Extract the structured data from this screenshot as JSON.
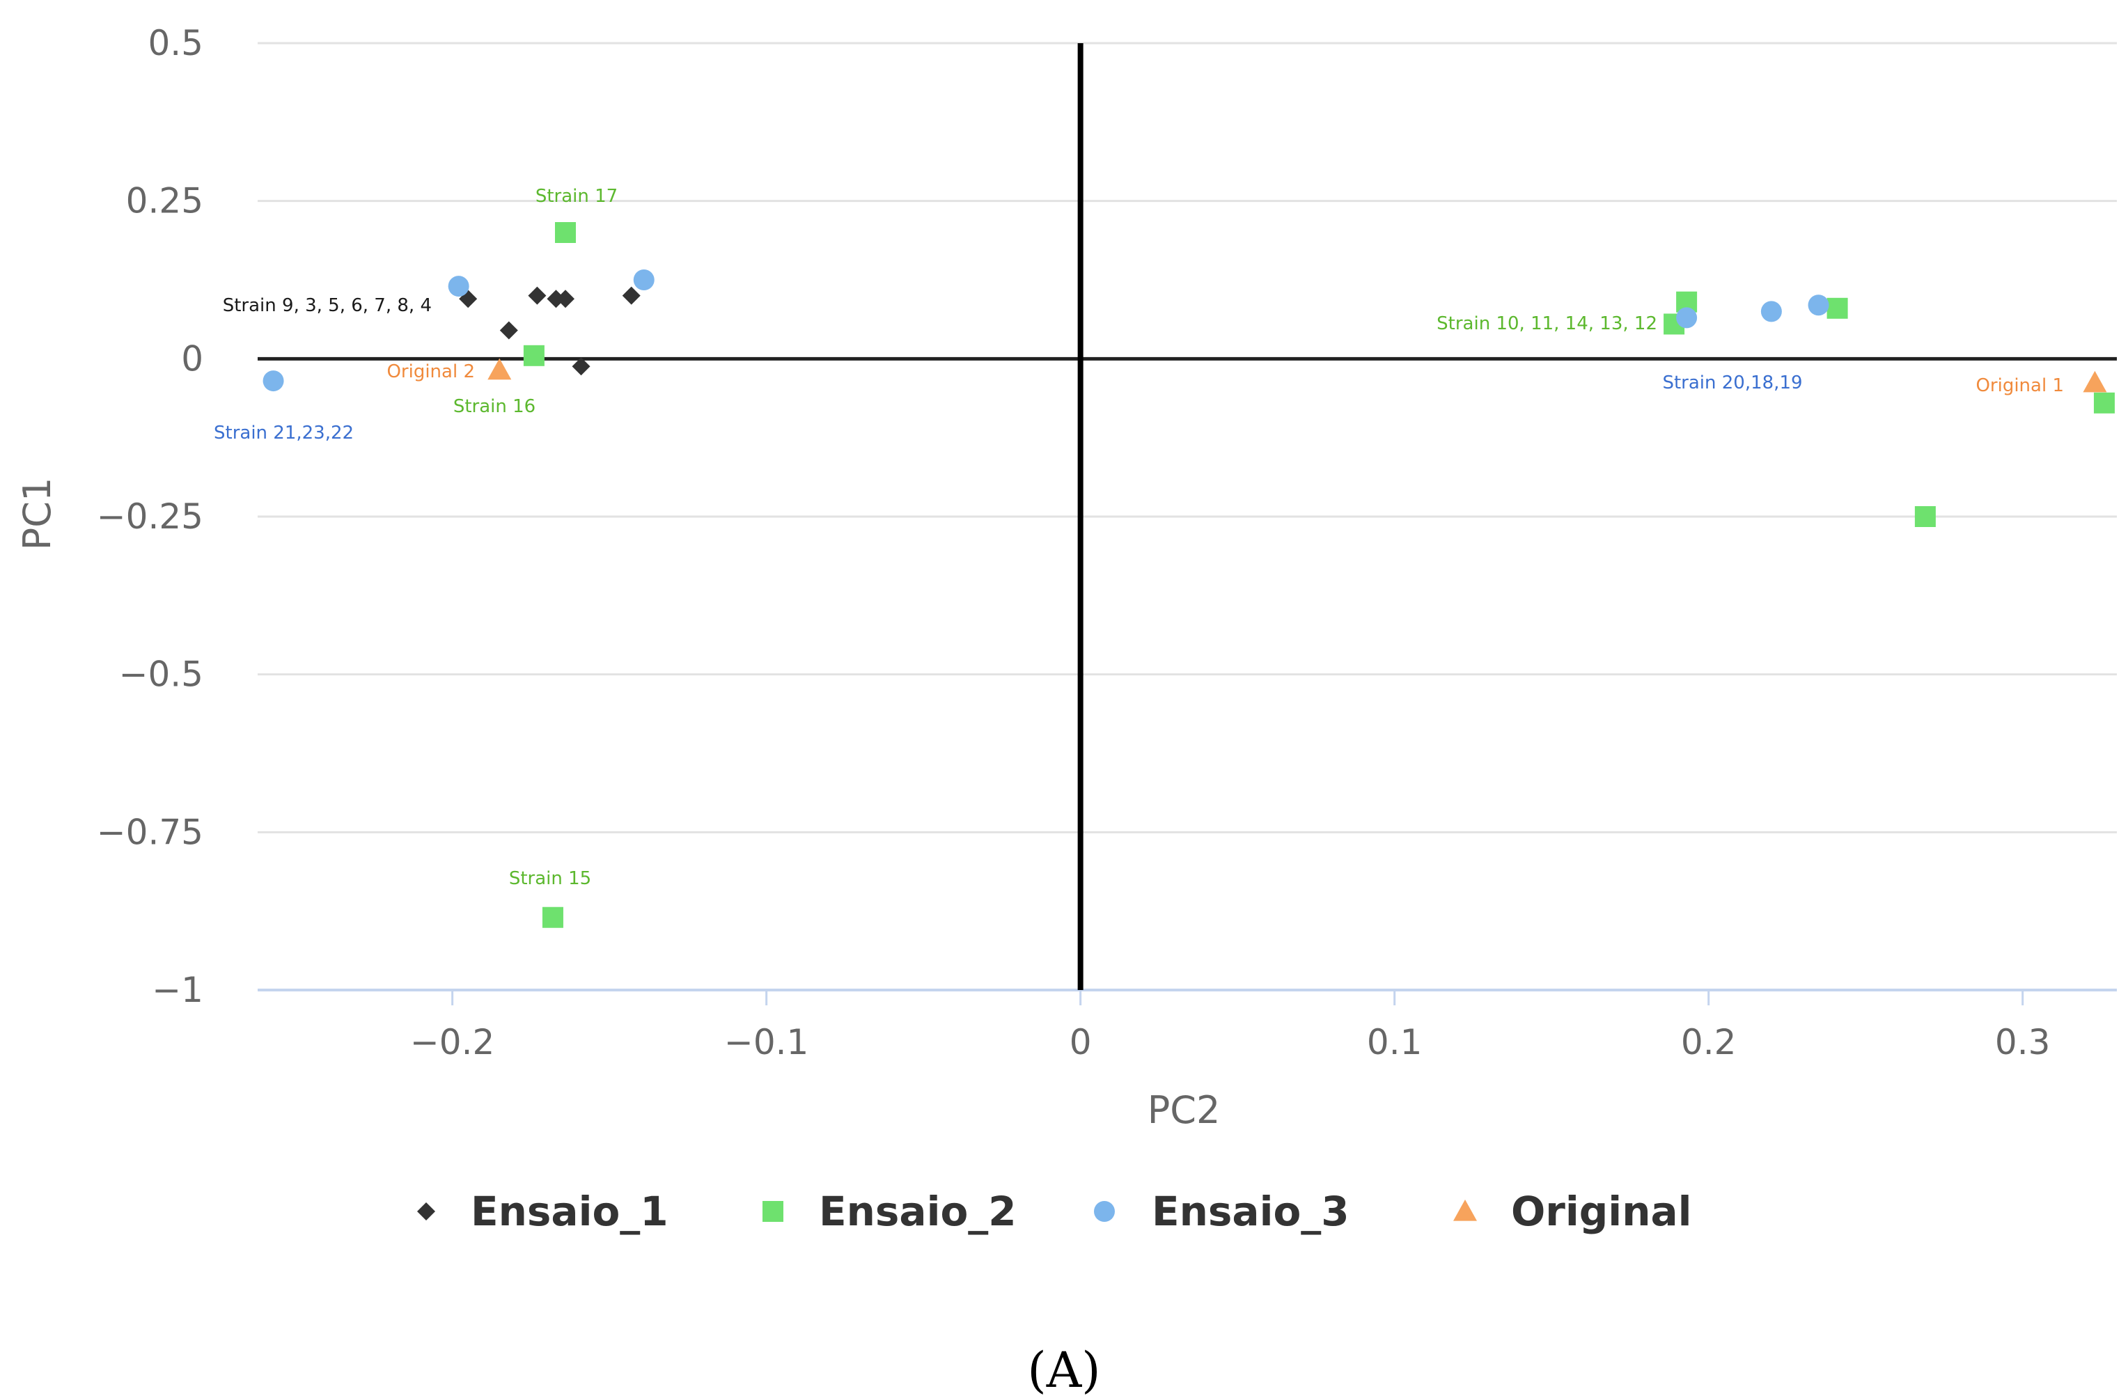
{
  "chart_data": {
    "type": "scatter",
    "title": "",
    "xlabel": "PC2",
    "ylabel": "PC1",
    "xlim": [
      -0.262,
      0.33
    ],
    "ylim": [
      -1,
      0.5
    ],
    "xticks": [
      -0.2,
      -0.1,
      0,
      0.1,
      0.2,
      0.3
    ],
    "xtick_labels": [
      "−0.2",
      "−0.1",
      "0",
      "0.1",
      "0.2",
      "0.3"
    ],
    "yticks": [
      0.5,
      0.25,
      0,
      -0.25,
      -0.5,
      -0.75,
      -1
    ],
    "ytick_labels": [
      "0.5",
      "0.25",
      "0",
      "−0.25",
      "−0.5",
      "−0.75",
      "−1"
    ],
    "grid": true,
    "legend_position": "bottom",
    "series": [
      {
        "name": "Ensaio_1",
        "marker": "diamond",
        "color": "#333333",
        "points": [
          [
            -0.195,
            0.095
          ],
          [
            -0.173,
            0.1
          ],
          [
            -0.167,
            0.095
          ],
          [
            -0.164,
            0.095
          ],
          [
            -0.143,
            0.1
          ],
          [
            -0.182,
            0.045
          ],
          [
            -0.159,
            -0.012
          ]
        ]
      },
      {
        "name": "Ensaio_2",
        "marker": "square",
        "color": "#6ee16e",
        "points": [
          [
            -0.164,
            0.2
          ],
          [
            -0.174,
            0.005
          ],
          [
            -0.168,
            -0.885
          ],
          [
            0.189,
            0.055
          ],
          [
            0.193,
            0.09
          ],
          [
            0.241,
            0.08
          ],
          [
            0.269,
            -0.25
          ],
          [
            0.326,
            -0.07
          ]
        ]
      },
      {
        "name": "Ensaio_3",
        "marker": "circle",
        "color": "#7cb5ec",
        "points": [
          [
            -0.198,
            0.115
          ],
          [
            -0.139,
            0.125
          ],
          [
            -0.257,
            -0.035
          ],
          [
            0.193,
            0.065
          ],
          [
            0.22,
            0.075
          ],
          [
            0.235,
            0.085
          ]
        ]
      },
      {
        "name": "Original",
        "marker": "triangle",
        "color": "#f7a35c",
        "points": [
          [
            -0.185,
            -0.018
          ],
          [
            0.323,
            -0.038
          ]
        ]
      }
    ],
    "annotations": [
      {
        "text": "Strain 17",
        "color": "#5cb82e"
      },
      {
        "text": "Strain 9, 3, 5, 6, 7, 8, 4",
        "color": "#1a1a1a"
      },
      {
        "text": "Original 2",
        "color": "#f08a3c"
      },
      {
        "text": "Strain 16",
        "color": "#5cb82e"
      },
      {
        "text": "Strain 21,23,22",
        "color": "#3a6fd0"
      },
      {
        "text": "Strain 15",
        "color": "#5cb82e"
      },
      {
        "text": "Strain 10, 11, 14, 13, 12",
        "color": "#5cb82e"
      },
      {
        "text": "Strain 20,18,19",
        "color": "#3a6fd0"
      },
      {
        "text": "Original 1",
        "color": "#f08a3c"
      }
    ],
    "panel_label": "(A)"
  }
}
